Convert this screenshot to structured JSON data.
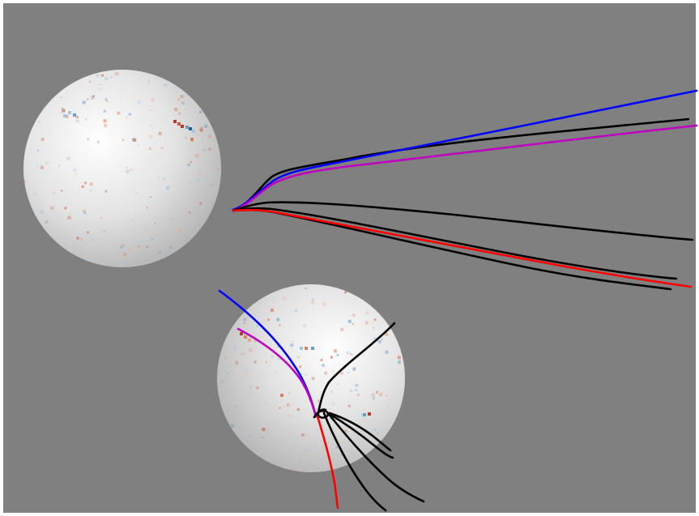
{
  "scene": {
    "background_color": "#808080",
    "frame_color": "#ffffff",
    "sphere_colors": {
      "highlight": "#ffffff",
      "mid": "#e3e3e3",
      "shadow": "#b4b4b4"
    },
    "sphere_count": 2,
    "speckle_colors": [
      "#e9a78c",
      "#d98161",
      "#c65a3c",
      "#a6c7da",
      "#6e9fbf",
      "#2a5f8a",
      "#b23a2a",
      "#1b3b63"
    ],
    "trajectory_colors": {
      "blue": "#0000ff",
      "magenta": "#bf00bf",
      "black": "#000000",
      "red": "#ff0000"
    }
  }
}
